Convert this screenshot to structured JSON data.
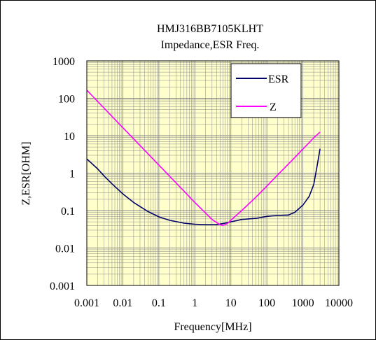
{
  "chart_data": {
    "type": "line",
    "title": "HMJ316BB7105KLHT",
    "subtitle": "Impedance,ESR Freq.",
    "xlabel": "Frequency[MHz]",
    "ylabel": "Z,ESR[OHM]",
    "x_scale": "log",
    "y_scale": "log",
    "xlim": [
      0.001,
      10000
    ],
    "ylim": [
      0.001,
      1000
    ],
    "x_ticks": [
      "0.001",
      "0.01",
      "0.1",
      "1",
      "10",
      "100",
      "1000",
      "10000"
    ],
    "y_ticks": [
      "0.001",
      "0.01",
      "0.1",
      "1",
      "10",
      "100",
      "1000"
    ],
    "grid": true,
    "legend_position": "top-right",
    "colors": {
      "plot_background": "#ffffcc",
      "grid": "#888888"
    },
    "series": [
      {
        "name": "ESR",
        "color": "#000066",
        "points": [
          [
            0.001,
            2.4
          ],
          [
            0.002,
            1.3
          ],
          [
            0.003,
            0.85
          ],
          [
            0.005,
            0.52
          ],
          [
            0.01,
            0.28
          ],
          [
            0.02,
            0.165
          ],
          [
            0.05,
            0.094
          ],
          [
            0.1,
            0.068
          ],
          [
            0.2,
            0.055
          ],
          [
            0.5,
            0.046
          ],
          [
            1,
            0.043
          ],
          [
            2,
            0.042
          ],
          [
            4,
            0.042
          ],
          [
            6,
            0.045
          ],
          [
            10,
            0.05
          ],
          [
            20,
            0.058
          ],
          [
            50,
            0.062
          ],
          [
            100,
            0.07
          ],
          [
            200,
            0.074
          ],
          [
            400,
            0.076
          ],
          [
            600,
            0.09
          ],
          [
            1000,
            0.14
          ],
          [
            1500,
            0.24
          ],
          [
            2000,
            0.5
          ],
          [
            2500,
            1.6
          ],
          [
            3000,
            4.5
          ]
        ]
      },
      {
        "name": "Z",
        "color": "#ff00ff",
        "points": [
          [
            0.001,
            165
          ],
          [
            0.01,
            16.5
          ],
          [
            0.1,
            1.65
          ],
          [
            1,
            0.165
          ],
          [
            3,
            0.058
          ],
          [
            5,
            0.042
          ],
          [
            6,
            0.04
          ],
          [
            8,
            0.045
          ],
          [
            10,
            0.055
          ],
          [
            20,
            0.1
          ],
          [
            50,
            0.23
          ],
          [
            100,
            0.45
          ],
          [
            200,
            0.9
          ],
          [
            500,
            2.2
          ],
          [
            1000,
            4.4
          ],
          [
            2000,
            8.8
          ],
          [
            3000,
            12.5
          ]
        ]
      }
    ]
  }
}
